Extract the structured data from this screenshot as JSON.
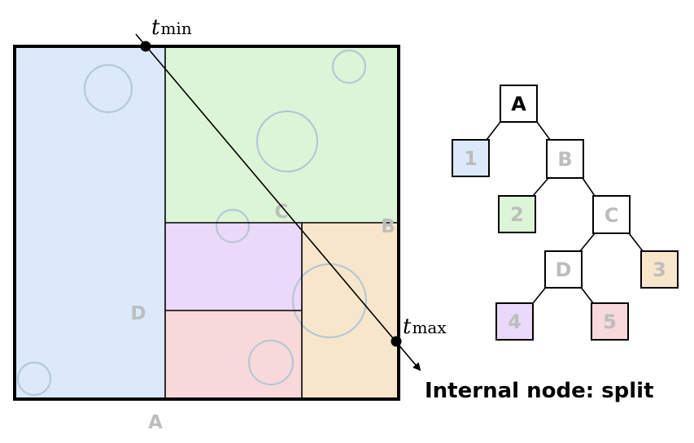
{
  "diagram": {
    "colors": {
      "cell1_blue": "#dbe9fb",
      "cell2_green": "#dcf5d6",
      "cell3_orange": "#f8e6cb",
      "cell4_purple": "#ead9f8",
      "cell5_pink": "#f8d9da",
      "circle_stroke": "#b6c7d6",
      "faded_label": "#bdbdbd",
      "border": "#000000"
    },
    "region_labels": {
      "a": "A",
      "b": "B",
      "c": "C",
      "d": "D"
    },
    "ray": {
      "t_min_var": "t",
      "t_min_sub": "min",
      "t_max_var": "t",
      "t_max_sub": "max"
    },
    "tree": {
      "root": "A",
      "leaf1": "1",
      "node_b": "B",
      "leaf2": "2",
      "node_c": "C",
      "node_d": "D",
      "leaf3": "3",
      "leaf4": "4",
      "leaf5": "5"
    },
    "caption": "Internal node: split"
  }
}
